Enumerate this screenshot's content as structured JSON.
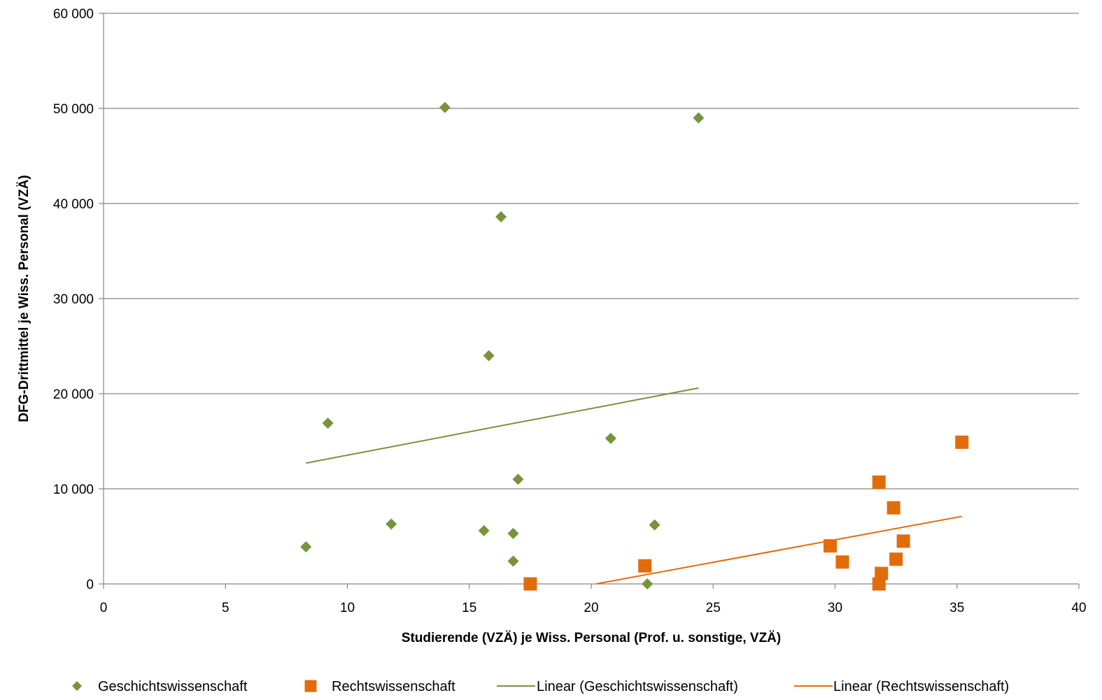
{
  "chart_data": {
    "type": "scatter",
    "xlabel": "Studierende (VZÄ) je Wiss. Personal (Prof. u. sonstige, VZÄ)",
    "ylabel": "DFG-Drittmittel je Wiss. Personal (VZÄ)",
    "xlim": [
      0,
      40
    ],
    "ylim": [
      0,
      60000
    ],
    "x_ticks": [
      0,
      5,
      10,
      15,
      20,
      25,
      30,
      35,
      40
    ],
    "x_tick_labels": [
      "0",
      "5",
      "10",
      "15",
      "20",
      "25",
      "30",
      "35",
      "40"
    ],
    "y_ticks": [
      0,
      10000,
      20000,
      30000,
      40000,
      50000,
      60000
    ],
    "y_tick_labels": [
      "0",
      "10 000",
      "20 000",
      "30 000",
      "40 000",
      "50 000",
      "60 000"
    ],
    "grid": "horizontal",
    "legend_position": "bottom",
    "series": [
      {
        "name": "Geschichtswissenschaft",
        "marker": "diamond",
        "color": "#77933C",
        "points": [
          [
            8.3,
            3900
          ],
          [
            9.2,
            16900
          ],
          [
            11.8,
            6300
          ],
          [
            14.0,
            50100
          ],
          [
            15.6,
            5600
          ],
          [
            15.8,
            24000
          ],
          [
            16.3,
            38600
          ],
          [
            16.8,
            5300
          ],
          [
            16.8,
            2400
          ],
          [
            17.0,
            11000
          ],
          [
            20.8,
            15300
          ],
          [
            22.3,
            0
          ],
          [
            22.6,
            6200
          ],
          [
            24.4,
            49000
          ]
        ]
      },
      {
        "name": "Rechtswissenschaft",
        "marker": "square",
        "color": "#E36C0A",
        "points": [
          [
            17.5,
            0
          ],
          [
            22.2,
            1900
          ],
          [
            29.8,
            4000
          ],
          [
            30.3,
            2300
          ],
          [
            31.8,
            10700
          ],
          [
            31.8,
            0
          ],
          [
            31.9,
            1100
          ],
          [
            32.4,
            8000
          ],
          [
            32.5,
            2600
          ],
          [
            32.8,
            4500
          ],
          [
            35.2,
            14900
          ]
        ]
      }
    ],
    "trendlines": [
      {
        "name": "Linear (Geschichtswissenschaft)",
        "color": "#77933C",
        "from": [
          8.3,
          12700
        ],
        "to": [
          24.4,
          20600
        ]
      },
      {
        "name": "Linear (Rechtswissenschaft)",
        "color": "#E36C0A",
        "from": [
          20.2,
          0
        ],
        "to": [
          35.2,
          7100
        ]
      }
    ]
  }
}
